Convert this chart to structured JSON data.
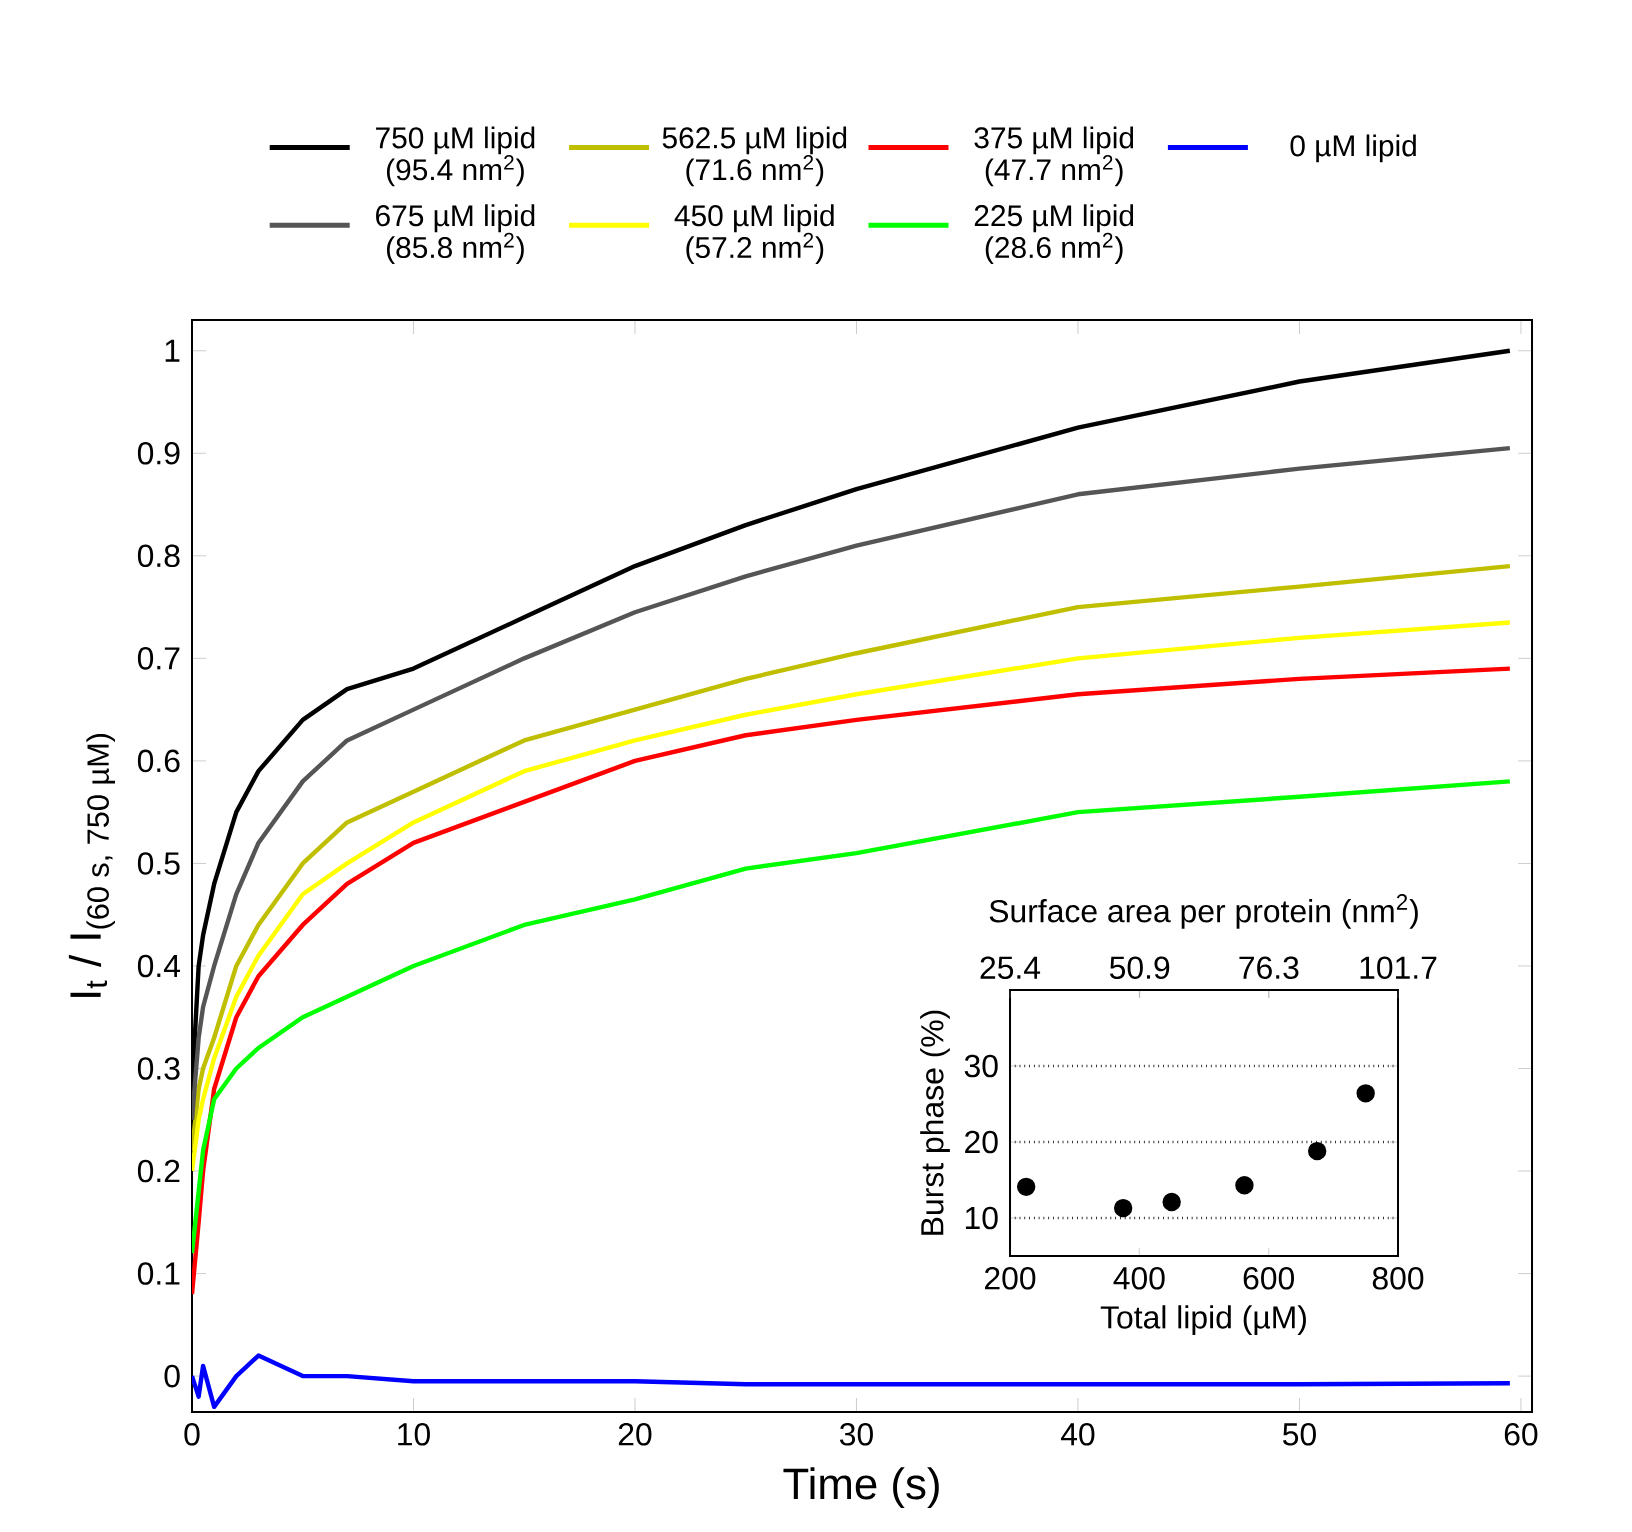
{
  "chart_data": [
    {
      "type": "line",
      "xlabel": "Time (s)",
      "ylabel": "\\text{I}_{\\text{t}}\\text{ / }\\text{I}_{\\text{(60 s, 750 µM)}}",
      "xlim": [
        0,
        60.5
      ],
      "ylim": [
        -0.035,
        1.03
      ],
      "xticks": [
        0,
        10,
        20,
        30,
        40,
        50,
        60
      ],
      "yticks": [
        0,
        0.1,
        0.2,
        0.3,
        0.4,
        0.5,
        0.6,
        0.7,
        0.8,
        0.9,
        1
      ],
      "legend": "top",
      "line_style": "solid",
      "x": [
        0,
        0.3,
        0.5,
        1,
        2,
        3,
        5,
        7,
        10,
        15,
        20,
        25,
        30,
        40,
        50,
        59.5
      ],
      "series": [
        {
          "name": "750 µM lipid (95.4 nm$^{2}$)",
          "color": "#000000",
          "values": [
            0.28,
            0.4,
            0.43,
            0.48,
            0.55,
            0.59,
            0.64,
            0.67,
            0.69,
            0.74,
            0.79,
            0.83,
            0.865,
            0.925,
            0.97,
            1.0
          ]
        },
        {
          "name": "562.5 µM lipid (71.6 nm$^{2}$)",
          "color": "#bfbf00",
          "values": [
            0.22,
            0.28,
            0.3,
            0.33,
            0.4,
            0.44,
            0.5,
            0.54,
            0.57,
            0.62,
            0.65,
            0.68,
            0.705,
            0.75,
            0.77,
            0.79
          ]
        },
        {
          "name": "375 µM lipid (47.7 nm$^{2}$)",
          "color": "#ff0000",
          "values": [
            0.08,
            0.15,
            0.2,
            0.28,
            0.35,
            0.39,
            0.44,
            0.48,
            0.52,
            0.56,
            0.6,
            0.625,
            0.64,
            0.665,
            0.68,
            0.69
          ]
        },
        {
          "name": "0 µM lipid",
          "color": "#0000ff",
          "values": [
            0.0,
            -0.02,
            0.01,
            -0.03,
            0.0,
            0.02,
            0.0,
            0.0,
            -0.005,
            -0.005,
            -0.005,
            -0.008,
            -0.008,
            -0.008,
            -0.008,
            -0.007
          ]
        },
        {
          "name": "675 µM lipid (85.8 nm$^{2}$)",
          "color": "#555555",
          "values": [
            0.25,
            0.33,
            0.36,
            0.4,
            0.47,
            0.52,
            0.58,
            0.62,
            0.65,
            0.7,
            0.745,
            0.78,
            0.81,
            0.86,
            0.885,
            0.905
          ]
        },
        {
          "name": "450 µM lipid (57.2 nm$^{2}$)",
          "color": "#ffff00",
          "values": [
            0.2,
            0.25,
            0.27,
            0.31,
            0.37,
            0.41,
            0.47,
            0.5,
            0.54,
            0.59,
            0.62,
            0.645,
            0.665,
            0.7,
            0.72,
            0.735
          ]
        },
        {
          "name": "225 µM lipid (28.6 nm$^{2}$)",
          "color": "#00ff00",
          "values": [
            0.12,
            0.18,
            0.22,
            0.27,
            0.3,
            0.32,
            0.35,
            0.37,
            0.4,
            0.44,
            0.465,
            0.495,
            0.51,
            0.55,
            0.565,
            0.58
          ]
        }
      ]
    },
    {
      "type": "scatter",
      "xlabel": "Total lipid (µM)",
      "ylabel": "Burst phase (%)",
      "x2label": "Surface area per protein (nm$^{2}$)",
      "xlim": [
        200,
        800
      ],
      "xticks": [
        200,
        400,
        600,
        800
      ],
      "x2lim": [
        25.4,
        101.7
      ],
      "x2ticks": [
        25.4,
        50.9,
        76.3,
        101.7
      ],
      "ylim": [
        5,
        40
      ],
      "yticks": [
        10,
        20,
        30
      ],
      "grid": "y",
      "marker": "circle",
      "color": "#000000",
      "x": [
        225,
        375,
        450,
        562.5,
        675,
        750
      ],
      "values": [
        14.1,
        11.3,
        12.1,
        14.3,
        18.8,
        26.4
      ]
    }
  ]
}
